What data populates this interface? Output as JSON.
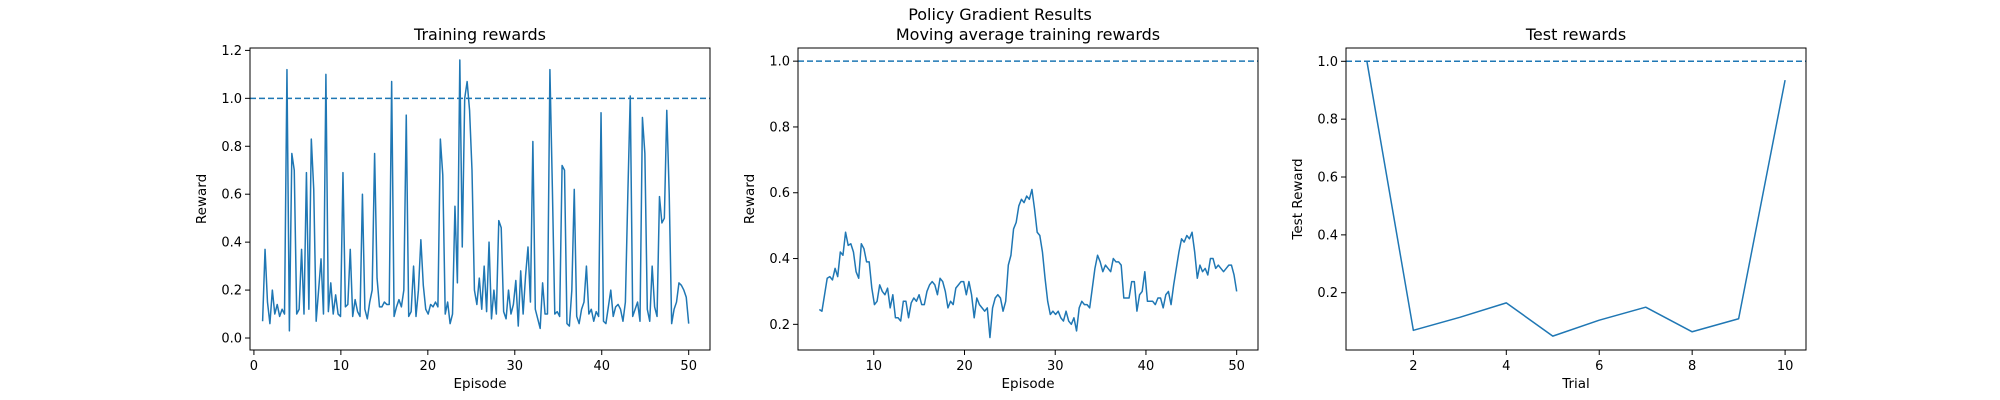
{
  "suptitle": "Policy Gradient Results",
  "colors": {
    "line": "#1f77b4",
    "axis": "#000000",
    "background": "#ffffff"
  },
  "chart_data": [
    {
      "type": "line",
      "title": "Training rewards",
      "xlabel": "Episode",
      "ylabel": "Reward",
      "xlim": [
        -0.45,
        52.45
      ],
      "ylim": [
        -0.05,
        1.21
      ],
      "xticks": [
        0,
        10,
        20,
        30,
        40,
        50
      ],
      "yticks": [
        0.0,
        0.2,
        0.4,
        0.6,
        0.8,
        1.0,
        1.2
      ],
      "xtick_labels": [
        "0",
        "10",
        "20",
        "30",
        "40",
        "50"
      ],
      "ytick_labels": [
        "0.0",
        "0.2",
        "0.4",
        "0.6",
        "0.8",
        "1.0",
        "1.2"
      ],
      "reference_line": {
        "y": 1.0,
        "style": "dashed"
      },
      "grid": false,
      "series": [
        {
          "x_start": 1,
          "x_end": 50,
          "values": [
            0.07,
            0.37,
            0.15,
            0.06,
            0.2,
            0.1,
            0.14,
            0.09,
            0.12,
            0.1,
            1.12,
            0.03,
            0.77,
            0.7,
            0.1,
            0.12,
            0.37,
            0.1,
            0.69,
            0.12,
            0.83,
            0.62,
            0.07,
            0.2,
            0.33,
            0.1,
            1.1,
            0.11,
            0.23,
            0.1,
            0.18,
            0.1,
            0.09,
            0.69,
            0.13,
            0.14,
            0.37,
            0.09,
            0.16,
            0.11,
            0.09,
            0.6,
            0.12,
            0.08,
            0.15,
            0.2,
            0.77,
            0.25,
            0.13,
            0.13,
            0.15,
            0.14,
            0.14,
            1.07,
            0.09,
            0.13,
            0.16,
            0.13,
            0.2,
            0.93,
            0.09,
            0.11,
            0.3,
            0.09,
            0.2,
            0.41,
            0.22,
            0.12,
            0.1,
            0.14,
            0.13,
            0.15,
            0.13,
            0.83,
            0.68,
            0.1,
            0.15,
            0.06,
            0.1,
            0.55,
            0.23,
            1.16,
            0.38,
            1.0,
            1.07,
            0.95,
            0.7,
            0.2,
            0.14,
            0.25,
            0.12,
            0.3,
            0.11,
            0.4,
            0.08,
            0.2,
            0.1,
            0.49,
            0.46,
            0.11,
            0.08,
            0.2,
            0.1,
            0.14,
            0.24,
            0.05,
            0.28,
            0.1,
            0.26,
            0.38,
            0.15,
            0.82,
            0.12,
            0.08,
            0.04,
            0.23,
            0.1,
            0.1,
            1.12,
            0.63,
            0.1,
            0.11,
            0.09,
            0.72,
            0.7,
            0.06,
            0.05,
            0.2,
            0.62,
            0.09,
            0.06,
            0.12,
            0.15,
            0.3,
            0.1,
            0.12,
            0.07,
            0.11,
            0.09,
            0.94,
            0.07,
            0.06,
            0.13,
            0.2,
            0.09,
            0.13,
            0.14,
            0.12,
            0.07,
            0.15,
            0.6,
            1.01,
            0.09,
            0.12,
            0.15,
            0.07,
            0.92,
            0.77,
            0.12,
            0.07,
            0.3,
            0.13,
            0.09,
            0.59,
            0.48,
            0.5,
            0.95,
            0.6,
            0.06,
            0.12,
            0.15,
            0.23,
            0.22,
            0.2,
            0.17,
            0.06
          ]
        }
      ]
    },
    {
      "type": "line",
      "title": "Moving average training rewards",
      "xlabel": "Episode",
      "ylabel": "Reward",
      "xlim": [
        1.65,
        52.35
      ],
      "ylim": [
        0.122,
        1.04
      ],
      "xticks": [
        10,
        20,
        30,
        40,
        50
      ],
      "yticks": [
        0.2,
        0.4,
        0.6,
        0.8,
        1.0
      ],
      "xtick_labels": [
        "10",
        "20",
        "30",
        "40",
        "50"
      ],
      "ytick_labels": [
        "0.2",
        "0.4",
        "0.6",
        "0.8",
        "1.0"
      ],
      "reference_line": {
        "y": 1.0,
        "style": "dashed"
      },
      "grid": false,
      "series": [
        {
          "x_start": 4,
          "x_end": 50,
          "values": [
            0.245,
            0.24,
            0.29,
            0.34,
            0.345,
            0.335,
            0.37,
            0.345,
            0.42,
            0.41,
            0.48,
            0.44,
            0.445,
            0.42,
            0.36,
            0.34,
            0.445,
            0.43,
            0.39,
            0.39,
            0.31,
            0.26,
            0.27,
            0.32,
            0.3,
            0.29,
            0.31,
            0.25,
            0.29,
            0.22,
            0.22,
            0.21,
            0.27,
            0.27,
            0.22,
            0.265,
            0.28,
            0.27,
            0.29,
            0.26,
            0.26,
            0.3,
            0.32,
            0.33,
            0.32,
            0.29,
            0.34,
            0.33,
            0.3,
            0.25,
            0.27,
            0.26,
            0.31,
            0.32,
            0.33,
            0.33,
            0.29,
            0.33,
            0.29,
            0.22,
            0.28,
            0.26,
            0.25,
            0.24,
            0.25,
            0.16,
            0.25,
            0.28,
            0.29,
            0.28,
            0.24,
            0.27,
            0.38,
            0.41,
            0.49,
            0.51,
            0.56,
            0.58,
            0.57,
            0.59,
            0.58,
            0.61,
            0.55,
            0.48,
            0.47,
            0.42,
            0.34,
            0.27,
            0.23,
            0.24,
            0.23,
            0.24,
            0.22,
            0.21,
            0.24,
            0.21,
            0.2,
            0.22,
            0.18,
            0.25,
            0.27,
            0.26,
            0.26,
            0.25,
            0.31,
            0.37,
            0.41,
            0.39,
            0.36,
            0.38,
            0.37,
            0.36,
            0.4,
            0.39,
            0.39,
            0.38,
            0.28,
            0.28,
            0.28,
            0.33,
            0.33,
            0.24,
            0.29,
            0.3,
            0.36,
            0.27,
            0.27,
            0.27,
            0.26,
            0.28,
            0.28,
            0.25,
            0.29,
            0.3,
            0.26,
            0.32,
            0.37,
            0.42,
            0.46,
            0.45,
            0.47,
            0.46,
            0.48,
            0.42,
            0.34,
            0.38,
            0.36,
            0.37,
            0.35,
            0.4,
            0.4,
            0.37,
            0.38,
            0.37,
            0.36,
            0.37,
            0.38,
            0.38,
            0.35,
            0.3
          ]
        }
      ]
    },
    {
      "type": "line",
      "title": "Test rewards",
      "xlabel": "Trial",
      "ylabel": "Test Reward",
      "xlim": [
        0.55,
        10.45
      ],
      "ylim": [
        0.002,
        1.046
      ],
      "xticks": [
        2,
        4,
        6,
        8,
        10
      ],
      "yticks": [
        0.2,
        0.4,
        0.6,
        0.8,
        1.0
      ],
      "xtick_labels": [
        "2",
        "4",
        "6",
        "8",
        "10"
      ],
      "ytick_labels": [
        "0.2",
        "0.4",
        "0.6",
        "0.8",
        "1.0"
      ],
      "reference_line": {
        "y": 1.0,
        "style": "dashed"
      },
      "grid": false,
      "series": [
        {
          "x": [
            1,
            2,
            3,
            4,
            5,
            6,
            7,
            8,
            9,
            10
          ],
          "values": [
            1.0,
            0.07,
            0.115,
            0.165,
            0.05,
            0.105,
            0.15,
            0.065,
            0.11,
            0.935
          ]
        }
      ]
    }
  ]
}
